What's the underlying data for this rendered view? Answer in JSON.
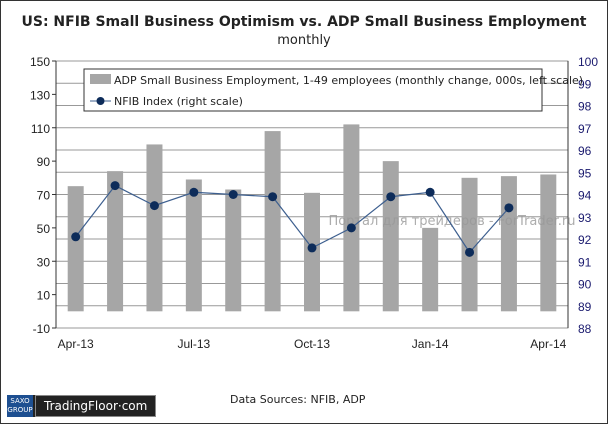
{
  "chart_data": {
    "type": "bar+line",
    "title": "US: NFIB Small Business Optimism vs. ADP Small Business Employment",
    "subtitle": "monthly",
    "categories": [
      "Apr-13",
      "May-13",
      "Jun-13",
      "Jul-13",
      "Aug-13",
      "Sep-13",
      "Oct-13",
      "Nov-13",
      "Dec-13",
      "Jan-14",
      "Feb-14",
      "Mar-14",
      "Apr-14"
    ],
    "x_tick_labels": [
      "Apr-13",
      "Jul-13",
      "Oct-13",
      "Jan-14",
      "Apr-14"
    ],
    "series": [
      {
        "name": "ADP Small Business Employment, 1-49 employees (monthly change, 000s, left scale)",
        "type": "bar",
        "axis": "left",
        "color": "#a6a6a6",
        "values": [
          75,
          84,
          100,
          79,
          73,
          108,
          71,
          112,
          90,
          50,
          80,
          81,
          82
        ]
      },
      {
        "name": "NFIB Index (right scale)",
        "type": "line",
        "axis": "right",
        "color": "#0d2c5a",
        "values": [
          92.1,
          94.4,
          93.5,
          94.1,
          94.0,
          93.9,
          91.6,
          92.5,
          93.9,
          94.1,
          91.4,
          93.4,
          null
        ]
      }
    ],
    "left_axis": {
      "ylim": [
        -10,
        150
      ],
      "ticks": [
        -10,
        10,
        30,
        50,
        70,
        90,
        110,
        130,
        150
      ]
    },
    "right_axis": {
      "ylim": [
        88,
        100
      ],
      "ticks": [
        88,
        89,
        90,
        91,
        92,
        93,
        94,
        95,
        96,
        97,
        98,
        99,
        100
      ]
    },
    "grid": true,
    "legend": "top"
  },
  "watermark": "Портал для трейдеров - ForTrader.ru",
  "source": "Data Sources: NFIB, ADP",
  "logo": {
    "saxo": "SAXO GROUP",
    "brand": "TradingFloor·com"
  }
}
